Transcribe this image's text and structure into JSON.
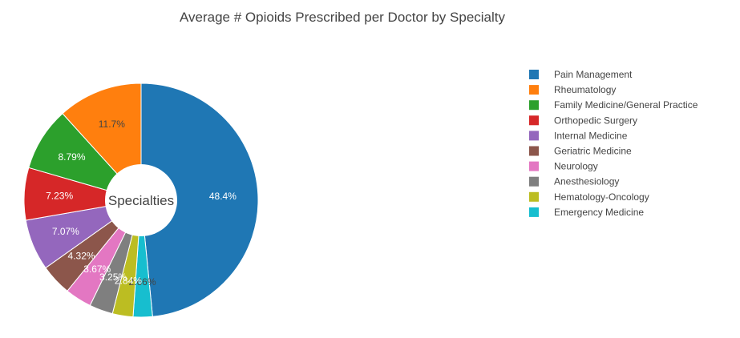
{
  "chart_data": {
    "type": "pie",
    "title": "Average # Opioids Prescribed per Doctor by Specialty",
    "center_label": "Specialties",
    "hole": true,
    "legend_position": "right",
    "slices": [
      {
        "name": "Pain Management",
        "value": 48.4,
        "label": "48.4%",
        "color": "#1f77b4",
        "label_color": "#ffffff"
      },
      {
        "name": "Emergency Medicine",
        "value": 2.66,
        "label": "2.66%",
        "color": "#17becf",
        "label_color": "#444444"
      },
      {
        "name": "Hematology-Oncology",
        "value": 2.84,
        "label": "2.84%",
        "color": "#bcbd22",
        "label_color": "#ffffff"
      },
      {
        "name": "Anesthesiology",
        "value": 3.25,
        "label": "3.25%",
        "color": "#7f7f7f",
        "label_color": "#ffffff"
      },
      {
        "name": "Neurology",
        "value": 3.67,
        "label": "3.67%",
        "color": "#e377c2",
        "label_color": "#ffffff"
      },
      {
        "name": "Geriatric Medicine",
        "value": 4.32,
        "label": "4.32%",
        "color": "#8c564b",
        "label_color": "#ffffff"
      },
      {
        "name": "Internal Medicine",
        "value": 7.07,
        "label": "7.07%",
        "color": "#9467bd",
        "label_color": "#ffffff"
      },
      {
        "name": "Orthopedic Surgery",
        "value": 7.23,
        "label": "7.23%",
        "color": "#d62728",
        "label_color": "#ffffff"
      },
      {
        "name": "Family Medicine/General Practice",
        "value": 8.79,
        "label": "8.79%",
        "color": "#2ca02c",
        "label_color": "#ffffff"
      },
      {
        "name": "Rheumatology",
        "value": 11.7,
        "label": "11.7%",
        "color": "#ff7f0e",
        "label_color": "#444444"
      }
    ],
    "legend": [
      {
        "name": "Pain Management",
        "color": "#1f77b4"
      },
      {
        "name": "Rheumatology",
        "color": "#ff7f0e"
      },
      {
        "name": "Family Medicine/General Practice",
        "color": "#2ca02c"
      },
      {
        "name": "Orthopedic Surgery",
        "color": "#d62728"
      },
      {
        "name": "Internal Medicine",
        "color": "#9467bd"
      },
      {
        "name": "Geriatric Medicine",
        "color": "#8c564b"
      },
      {
        "name": "Neurology",
        "color": "#e377c2"
      },
      {
        "name": "Anesthesiology",
        "color": "#7f7f7f"
      },
      {
        "name": "Hematology-Oncology",
        "color": "#bcbd22"
      },
      {
        "name": "Emergency Medicine",
        "color": "#17becf"
      }
    ]
  }
}
